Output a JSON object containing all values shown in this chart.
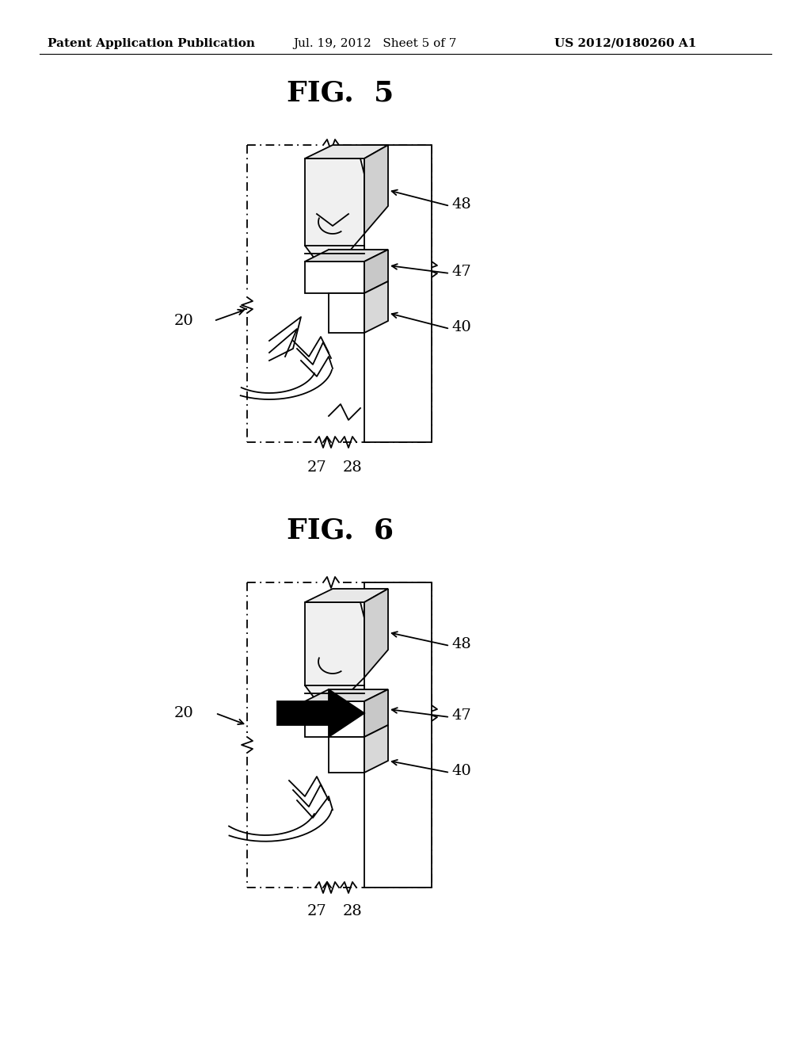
{
  "bg_color": "#ffffff",
  "header_left": "Patent Application Publication",
  "header_mid": "Jul. 19, 2012   Sheet 5 of 7",
  "header_right": "US 2012/0180260 A1",
  "fig5_title": "FIG.  5",
  "fig6_title": "FIG.  6",
  "label_20_fig5": "20",
  "label_27_fig5": "27",
  "label_28_fig5": "28",
  "label_47_fig5": "47",
  "label_48_fig5": "48",
  "label_40_fig5": "40",
  "label_20_fig6": "20",
  "label_27_fig6": "27",
  "label_28_fig6": "28",
  "label_47_fig6": "47",
  "label_48_fig6": "48",
  "label_40_fig6": "40"
}
